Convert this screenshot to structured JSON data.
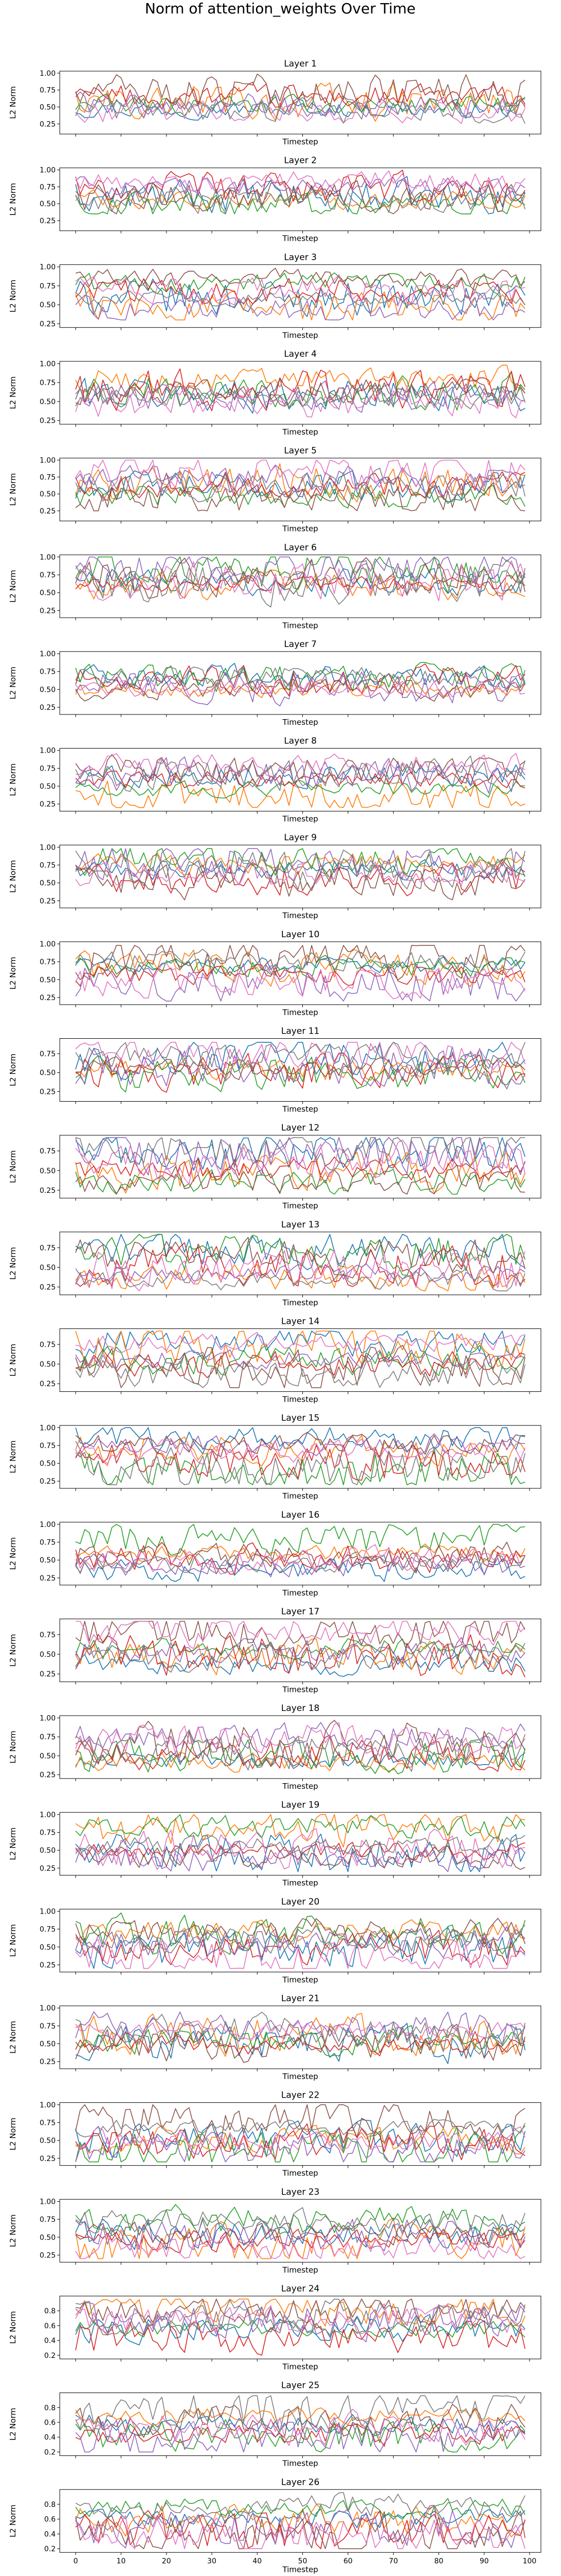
{
  "figure": {
    "suptitle": "Norm of attention_weights Over Time"
  },
  "chart_data": {
    "type": "line",
    "title": "Norm of attention_weights Over Time",
    "xlabel": "Timestep",
    "ylabel": "L2 Norm",
    "xlim": [
      -3.5,
      102.5
    ],
    "x_ticks": [
      0,
      10,
      20,
      30,
      40,
      50,
      60,
      70,
      80,
      90,
      100
    ],
    "x_tick_labels_only_on_last_panel": true,
    "timesteps": 100,
    "series_per_panel": 8,
    "series_colors": [
      "#1f77b4",
      "#ff7f0e",
      "#2ca02c",
      "#d62728",
      "#9467bd",
      "#8c564b",
      "#e377c2",
      "#7f7f7f"
    ],
    "grid": false,
    "legend": "none",
    "note_values": "per-timestep values are approximated from the plotted curves",
    "panels": [
      {
        "title": "Layer 1",
        "ylim": [
          0.1,
          1.03
        ],
        "yticks": [
          0.25,
          0.5,
          0.75,
          1.0
        ],
        "ytick_labels": [
          "0.25",
          "0.50",
          "0.75",
          "1.00"
        ],
        "low": 0.18,
        "high": 1.0
      },
      {
        "title": "Layer 2",
        "ylim": [
          0.1,
          1.03
        ],
        "yticks": [
          0.25,
          0.5,
          0.75,
          1.0
        ],
        "ytick_labels": [
          "0.25",
          "0.50",
          "0.75",
          "1.00"
        ],
        "low": 0.35,
        "high": 1.0
      },
      {
        "title": "Layer 3",
        "ylim": [
          0.2,
          1.03
        ],
        "yticks": [
          0.25,
          0.5,
          0.75,
          1.0
        ],
        "ytick_labels": [
          "0.25",
          "0.50",
          "0.75",
          "1.00"
        ],
        "low": 0.3,
        "high": 1.0
      },
      {
        "title": "Layer 4",
        "ylim": [
          0.2,
          1.03
        ],
        "yticks": [
          0.25,
          0.5,
          0.75,
          1.0
        ],
        "ytick_labels": [
          "0.25",
          "0.50",
          "0.75",
          "1.00"
        ],
        "low": 0.28,
        "high": 0.98
      },
      {
        "title": "Layer 5",
        "ylim": [
          0.1,
          1.03
        ],
        "yticks": [
          0.25,
          0.5,
          0.75,
          1.0
        ],
        "ytick_labels": [
          "0.25",
          "0.50",
          "0.75",
          "1.00"
        ],
        "low": 0.25,
        "high": 1.0
      },
      {
        "title": "Layer 6",
        "ylim": [
          0.15,
          1.03
        ],
        "yticks": [
          0.25,
          0.5,
          0.75,
          1.0
        ],
        "ytick_labels": [
          "0.25",
          "0.50",
          "0.75",
          "1.00"
        ],
        "low": 0.25,
        "high": 1.0
      },
      {
        "title": "Layer 7",
        "ylim": [
          0.15,
          1.03
        ],
        "yticks": [
          0.25,
          0.5,
          0.75,
          1.0
        ],
        "ytick_labels": [
          "0.25",
          "0.50",
          "0.75",
          "1.00"
        ],
        "low": 0.25,
        "high": 1.0
      },
      {
        "title": "Layer 8",
        "ylim": [
          0.15,
          1.03
        ],
        "yticks": [
          0.25,
          0.5,
          0.75,
          1.0
        ],
        "ytick_labels": [
          "0.25",
          "0.50",
          "0.75",
          "1.00"
        ],
        "low": 0.2,
        "high": 0.98
      },
      {
        "title": "Layer 9",
        "ylim": [
          0.15,
          1.03
        ],
        "yticks": [
          0.25,
          0.5,
          0.75,
          1.0
        ],
        "ytick_labels": [
          "0.25",
          "0.50",
          "0.75",
          "1.00"
        ],
        "low": 0.2,
        "high": 0.98
      },
      {
        "title": "Layer 10",
        "ylim": [
          0.15,
          1.03
        ],
        "yticks": [
          0.25,
          0.5,
          0.75,
          1.0
        ],
        "ytick_labels": [
          "0.25",
          "0.50",
          "0.75",
          "1.00"
        ],
        "low": 0.2,
        "high": 0.98
      },
      {
        "title": "Layer 11",
        "ylim": [
          0.12,
          0.95
        ],
        "yticks": [
          0.25,
          0.5,
          0.75
        ],
        "ytick_labels": [
          "0.25",
          "0.50",
          "0.75"
        ],
        "low": 0.2,
        "high": 0.9
      },
      {
        "title": "Layer 12",
        "ylim": [
          0.15,
          0.95
        ],
        "yticks": [
          0.25,
          0.5,
          0.75
        ],
        "ytick_labels": [
          "0.25",
          "0.50",
          "0.75"
        ],
        "low": 0.2,
        "high": 0.92
      },
      {
        "title": "Layer 13",
        "ylim": [
          0.15,
          0.95
        ],
        "yticks": [
          0.25,
          0.5,
          0.75
        ],
        "ytick_labels": [
          "0.25",
          "0.50",
          "0.75"
        ],
        "low": 0.2,
        "high": 0.92
      },
      {
        "title": "Layer 14",
        "ylim": [
          0.15,
          0.95
        ],
        "yticks": [
          0.25,
          0.5,
          0.75
        ],
        "ytick_labels": [
          "0.25",
          "0.50",
          "0.75"
        ],
        "low": 0.2,
        "high": 0.92
      },
      {
        "title": "Layer 15",
        "ylim": [
          0.15,
          1.03
        ],
        "yticks": [
          0.25,
          0.5,
          0.75,
          1.0
        ],
        "ytick_labels": [
          "0.25",
          "0.50",
          "0.75",
          "1.00"
        ],
        "low": 0.2,
        "high": 1.0
      },
      {
        "title": "Layer 16",
        "ylim": [
          0.15,
          1.03
        ],
        "yticks": [
          0.25,
          0.5,
          0.75,
          1.0
        ],
        "ytick_labels": [
          "0.25",
          "0.50",
          "0.75",
          "1.00"
        ],
        "low": 0.2,
        "high": 1.0
      },
      {
        "title": "Layer 17",
        "ylim": [
          0.15,
          0.95
        ],
        "yticks": [
          0.25,
          0.5,
          0.75
        ],
        "ytick_labels": [
          "0.25",
          "0.50",
          "0.75"
        ],
        "low": 0.2,
        "high": 0.92
      },
      {
        "title": "Layer 18",
        "ylim": [
          0.2,
          1.03
        ],
        "yticks": [
          0.25,
          0.5,
          0.75,
          1.0
        ],
        "ytick_labels": [
          "0.25",
          "0.50",
          "0.75",
          "1.00"
        ],
        "low": 0.25,
        "high": 1.0
      },
      {
        "title": "Layer 19",
        "ylim": [
          0.15,
          1.03
        ],
        "yticks": [
          0.25,
          0.5,
          0.75,
          1.0
        ],
        "ytick_labels": [
          "0.25",
          "0.50",
          "0.75",
          "1.00"
        ],
        "low": 0.2,
        "high": 1.0
      },
      {
        "title": "Layer 20",
        "ylim": [
          0.15,
          1.03
        ],
        "yticks": [
          0.25,
          0.5,
          0.75,
          1.0
        ],
        "ytick_labels": [
          "0.25",
          "0.50",
          "0.75",
          "1.00"
        ],
        "low": 0.2,
        "high": 1.0
      },
      {
        "title": "Layer 21",
        "ylim": [
          0.15,
          1.03
        ],
        "yticks": [
          0.25,
          0.5,
          0.75,
          1.0
        ],
        "ytick_labels": [
          "0.25",
          "0.50",
          "0.75",
          "1.00"
        ],
        "low": 0.2,
        "high": 1.0
      },
      {
        "title": "Layer 22",
        "ylim": [
          0.15,
          1.03
        ],
        "yticks": [
          0.25,
          0.5,
          0.75,
          1.0
        ],
        "ytick_labels": [
          "0.25",
          "0.50",
          "0.75",
          "1.00"
        ],
        "low": 0.2,
        "high": 1.0
      },
      {
        "title": "Layer 23",
        "ylim": [
          0.15,
          1.03
        ],
        "yticks": [
          0.25,
          0.5,
          0.75,
          1.0
        ],
        "ytick_labels": [
          "0.25",
          "0.50",
          "0.75",
          "1.00"
        ],
        "low": 0.2,
        "high": 1.0
      },
      {
        "title": "Layer 24",
        "ylim": [
          0.15,
          1.0
        ],
        "yticks": [
          0.2,
          0.4,
          0.6,
          0.8
        ],
        "ytick_labels": [
          "0.2",
          "0.4",
          "0.6",
          "0.8"
        ],
        "low": 0.2,
        "high": 0.96
      },
      {
        "title": "Layer 25",
        "ylim": [
          0.15,
          1.0
        ],
        "yticks": [
          0.2,
          0.4,
          0.6,
          0.8
        ],
        "ytick_labels": [
          "0.2",
          "0.4",
          "0.6",
          "0.8"
        ],
        "low": 0.2,
        "high": 0.96
      },
      {
        "title": "Layer 26",
        "ylim": [
          0.15,
          1.0
        ],
        "yticks": [
          0.2,
          0.4,
          0.6,
          0.8
        ],
        "ytick_labels": [
          "0.2",
          "0.4",
          "0.6",
          "0.8"
        ],
        "low": 0.2,
        "high": 0.96
      }
    ]
  }
}
